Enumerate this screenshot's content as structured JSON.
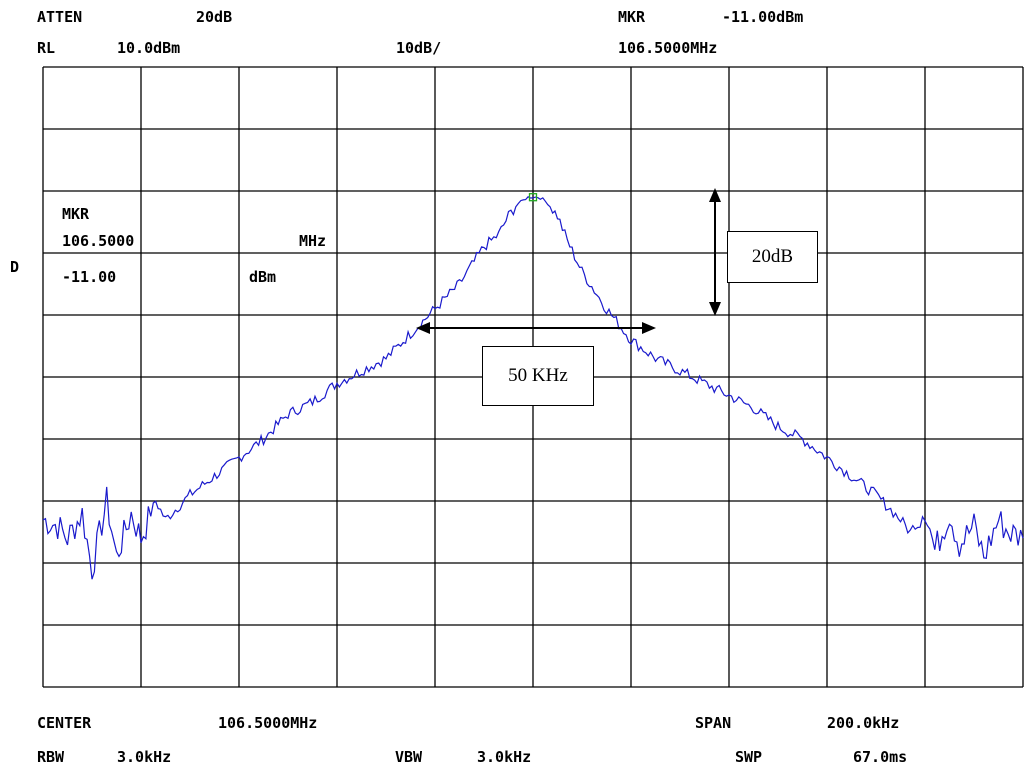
{
  "header": {
    "atten_label": "ATTEN",
    "atten_value": "20dB",
    "mkr_label": "MKR",
    "mkr_value": "-11.00dBm",
    "rl_label": "RL",
    "rl_value": "10.0dBm",
    "scale": "10dB/",
    "mkr_freq": "106.5000MHz"
  },
  "side_marker": "D",
  "marker_box": {
    "title": "MKR",
    "freq": "106.5000",
    "freq_unit": "MHz",
    "level": "-11.00",
    "level_unit": "dBm"
  },
  "annotations": {
    "db_span": "20dB",
    "bw_span": "50 KHz"
  },
  "footer": {
    "center_label": "CENTER",
    "center_value": "106.5000MHz",
    "span_label": "SPAN",
    "span_value": "200.0kHz",
    "rbw_label": "RBW",
    "rbw_value": "3.0kHz",
    "vbw_label": "VBW",
    "vbw_value": "3.0kHz",
    "swp_label": "SWP",
    "swp_value": "67.0ms"
  },
  "colors": {
    "trace": "#1a1acc",
    "marker": "#22aa22",
    "grid": "#000000"
  },
  "chart_data": {
    "type": "line",
    "x_unit": "kHz offset from center",
    "y_unit": "dBm",
    "xlim": [
      -100,
      100
    ],
    "ylim": [
      -90,
      10
    ],
    "grid": true,
    "marker": {
      "x": 0,
      "y": -11
    },
    "series": [
      {
        "x": [
          -100,
          -97,
          -95,
          -92,
          -90,
          -87,
          -85,
          -82,
          -80,
          -77,
          -75,
          -70,
          -65,
          -60,
          -55,
          -50,
          -45,
          -40,
          -35,
          -30,
          -25,
          -20,
          -15,
          -10,
          -7,
          -5,
          -3,
          -2,
          -1,
          0,
          1,
          2,
          3,
          5,
          7,
          10,
          15,
          20,
          25,
          30,
          35,
          40,
          45,
          50,
          55,
          60,
          65,
          70,
          75,
          77,
          80,
          82,
          85,
          87,
          90,
          92,
          95,
          97,
          100
        ],
        "y": [
          -63,
          -64,
          -66,
          -62,
          -71,
          -60,
          -69,
          -62,
          -66,
          -60,
          -63,
          -59,
          -56,
          -53,
          -50,
          -46,
          -44,
          -41,
          -39,
          -37,
          -33,
          -29,
          -25,
          -19,
          -17,
          -14,
          -12,
          -11.5,
          -11,
          -11,
          -11,
          -11.3,
          -12,
          -14,
          -18,
          -23,
          -29,
          -34,
          -37,
          -39,
          -41,
          -43,
          -45,
          -48,
          -50,
          -53,
          -56,
          -59,
          -63,
          -65,
          -61,
          -68,
          -62,
          -67,
          -64,
          -69,
          -63,
          -65,
          -66
        ]
      }
    ]
  }
}
